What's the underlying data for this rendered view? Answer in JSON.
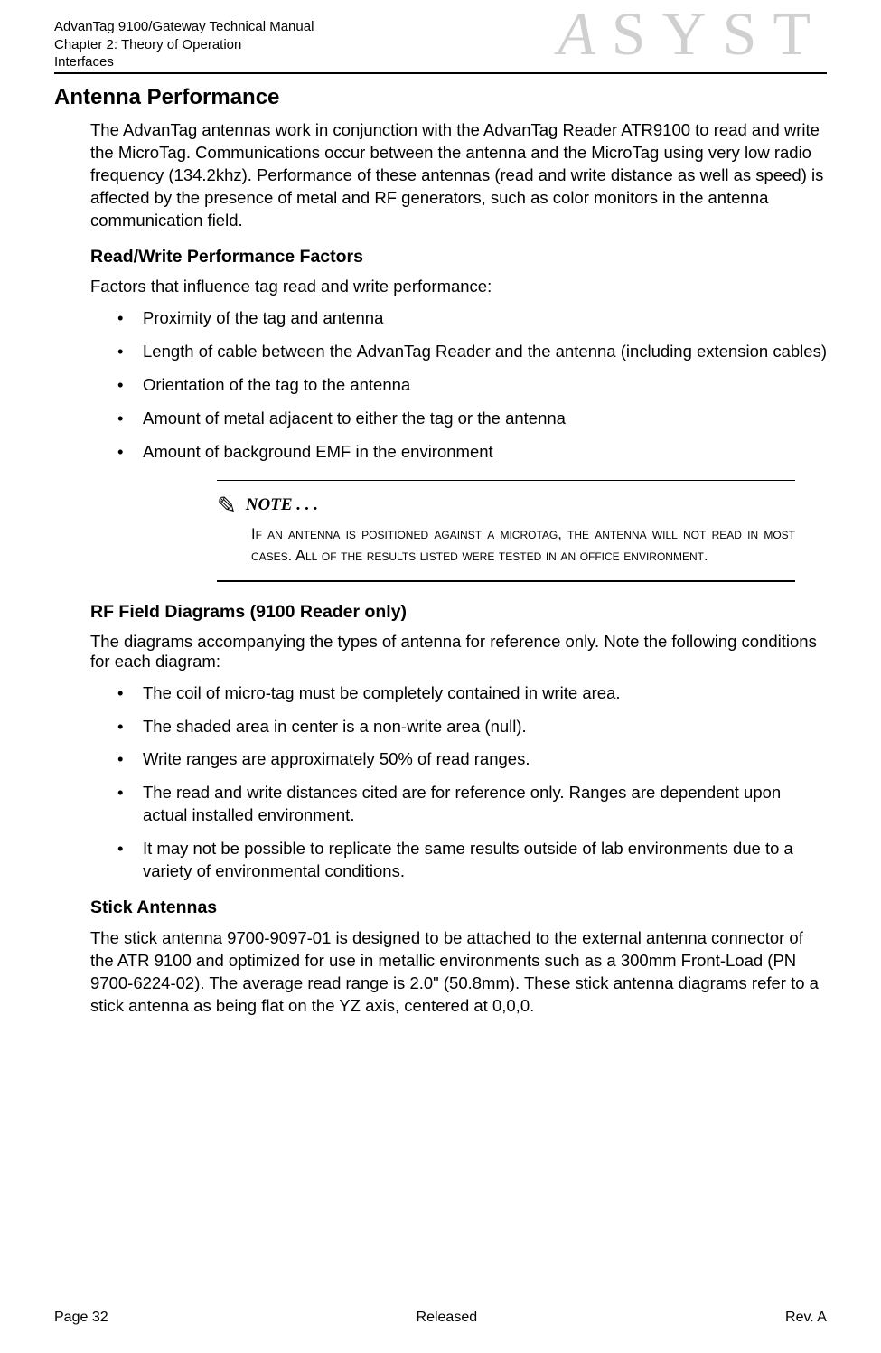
{
  "header": {
    "line1": "AdvanTag 9100/Gateway Technical Manual",
    "line2": "Chapter 2: Theory of Operation",
    "line3": "Interfaces",
    "logo_text": "SYST",
    "logo_prefix": "A"
  },
  "section_title": "Antenna Performance",
  "intro_para": "The AdvanTag antennas work in conjunction with the AdvanTag Reader ATR9100 to read and write the MicroTag. Communications occur between the antenna and the MicroTag using very low radio frequency (134.2khz). Performance of these antennas (read and write distance as well as speed) is affected by the presence of metal and RF generators, such as color monitors in the antenna communication field.",
  "sub1_title": "Read/Write Performance Factors",
  "sub1_intro": "Factors that influence tag read and write performance:",
  "sub1_bullets": [
    "Proximity of the tag and antenna",
    "Length of cable between the AdvanTag Reader and the antenna (including extension cables)",
    "Orientation of the tag to the antenna",
    "Amount of metal adjacent to either the tag or the antenna",
    "Amount of background EMF in the environment"
  ],
  "note": {
    "label": "NOTE . . .",
    "text": "If an antenna is positioned against a microtag, the antenna will not read in most cases. All of the results listed were tested in an office environment."
  },
  "sub2_title": "RF Field Diagrams (9100 Reader only)",
  "sub2_intro": "The diagrams accompanying the types of antenna for reference only. Note the following conditions for each diagram:",
  "sub2_bullets": [
    "The coil of micro-tag must be completely contained in write area.",
    "The shaded area in center is a non-write area (null).",
    "Write ranges are approximately 50% of read ranges.",
    "The read and write distances cited are for reference only. Ranges are dependent upon actual installed environment.",
    "It may not be possible to replicate the same results outside of lab environments due to a variety of environmental conditions."
  ],
  "sub3_title": "Stick Antennas",
  "sub3_para": "The stick antenna 9700-9097-01 is designed to be attached to the external antenna connector of the ATR 9100 and optimized for use in metallic environments such as a 300mm Front-Load (PN 9700-6224-02). The average read range is 2.0\" (50.8mm). These stick antenna diagrams refer to a stick antenna as being flat on the YZ axis, centered at 0,0,0.",
  "footer": {
    "left": "Page 32",
    "center": "Released",
    "right": "Rev. A"
  }
}
